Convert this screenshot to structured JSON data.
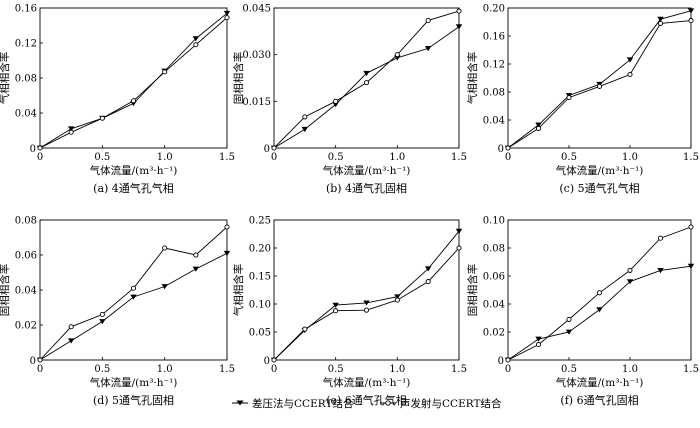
{
  "legend": {
    "series1": "差压法与CCERT结合",
    "series2": "声发射与CCERT结合"
  },
  "chart_data": [
    {
      "type": "line",
      "caption": "(a) 4通气孔气相",
      "xlabel": "气体流量/(m³·h⁻¹)",
      "ylabel": "气相相含率",
      "xlim": [
        0,
        1.5
      ],
      "ylim": [
        0,
        0.16
      ],
      "xticks": [
        0,
        0.5,
        1.0,
        1.5
      ],
      "xtick_labels": [
        "0",
        "0.5",
        "1.0",
        "1.5"
      ],
      "yticks": [
        0.04,
        0.08,
        0.12,
        0.16
      ],
      "ytick_labels": [
        "0.04",
        "0.08",
        "0.12",
        "0.16"
      ],
      "x": [
        0,
        0.25,
        0.5,
        0.75,
        1.0,
        1.25,
        1.5
      ],
      "series": [
        {
          "name": "差压法与CCERT结合",
          "marker": "triangle",
          "values": [
            0,
            0.022,
            0.034,
            0.051,
            0.088,
            0.125,
            0.154
          ]
        },
        {
          "name": "声发射与CCERT结合",
          "marker": "circle",
          "values": [
            0,
            0.018,
            0.034,
            0.054,
            0.087,
            0.118,
            0.149
          ]
        }
      ]
    },
    {
      "type": "line",
      "caption": "(b) 4通气孔固相",
      "xlabel": "气体流量/(m³·h⁻¹)",
      "ylabel": "固相相含率",
      "xlim": [
        0,
        1.5
      ],
      "ylim": [
        0,
        0.045
      ],
      "xticks": [
        0,
        0.5,
        1.0,
        1.5
      ],
      "xtick_labels": [
        "0",
        "0.5",
        "1.0",
        "1.5"
      ],
      "yticks": [
        0.015,
        0.03,
        0.045
      ],
      "ytick_labels": [
        "0.015",
        "0.030",
        "0.045"
      ],
      "x": [
        0,
        0.25,
        0.5,
        0.75,
        1.0,
        1.25,
        1.5
      ],
      "series": [
        {
          "name": "差压法与CCERT结合",
          "marker": "triangle",
          "values": [
            0,
            0.006,
            0.014,
            0.024,
            0.029,
            0.032,
            0.039
          ]
        },
        {
          "name": "声发射与CCERT结合",
          "marker": "circle",
          "values": [
            0,
            0.01,
            0.015,
            0.021,
            0.03,
            0.041,
            0.044
          ]
        }
      ]
    },
    {
      "type": "line",
      "caption": "(c) 5通气孔气相",
      "xlabel": "气体流量/(m³·h⁻¹)",
      "ylabel": "气相相含率",
      "xlim": [
        0,
        1.5
      ],
      "ylim": [
        0,
        0.2
      ],
      "xticks": [
        0,
        0.5,
        1.0,
        1.5
      ],
      "xtick_labels": [
        "0",
        "0.5",
        "1.0",
        "1.5"
      ],
      "yticks": [
        0.04,
        0.08,
        0.12,
        0.16,
        0.2
      ],
      "ytick_labels": [
        "0.04",
        "0.08",
        "0.12",
        "0.16",
        "0.20"
      ],
      "x": [
        0,
        0.25,
        0.5,
        0.75,
        1.0,
        1.25,
        1.5
      ],
      "series": [
        {
          "name": "差压法与CCERT结合",
          "marker": "triangle",
          "values": [
            0,
            0.033,
            0.075,
            0.091,
            0.126,
            0.184,
            0.196
          ]
        },
        {
          "name": "声发射与CCERT结合",
          "marker": "circle",
          "values": [
            0,
            0.028,
            0.072,
            0.088,
            0.105,
            0.178,
            0.182
          ]
        }
      ]
    },
    {
      "type": "line",
      "caption": "(d) 5通气孔固相",
      "xlabel": "气体流量/(m³·h⁻¹)",
      "ylabel": "固相相含率",
      "xlim": [
        0,
        1.5
      ],
      "ylim": [
        0,
        0.08
      ],
      "xticks": [
        0,
        0.5,
        1.0,
        1.5
      ],
      "xtick_labels": [
        "0",
        "0.5",
        "1.0",
        "1.5"
      ],
      "yticks": [
        0.02,
        0.04,
        0.06,
        0.08
      ],
      "ytick_labels": [
        "0.02",
        "0.04",
        "0.06",
        "0.08"
      ],
      "x": [
        0,
        0.25,
        0.5,
        0.75,
        1.0,
        1.25,
        1.5
      ],
      "series": [
        {
          "name": "差压法与CCERT结合",
          "marker": "triangle",
          "values": [
            0,
            0.011,
            0.022,
            0.036,
            0.042,
            0.052,
            0.061
          ]
        },
        {
          "name": "声发射与CCERT结合",
          "marker": "circle",
          "values": [
            0,
            0.019,
            0.026,
            0.041,
            0.064,
            0.06,
            0.076
          ]
        }
      ]
    },
    {
      "type": "line",
      "caption": "(e) 6通气孔气相",
      "xlabel": "气体流量/(m³·h⁻¹)",
      "ylabel": "气相相含率",
      "xlim": [
        0,
        1.5
      ],
      "ylim": [
        0,
        0.25
      ],
      "xticks": [
        0,
        0.5,
        1.0,
        1.5
      ],
      "xtick_labels": [
        "0",
        "0.5",
        "1.0",
        "1.5"
      ],
      "yticks": [
        0.05,
        0.1,
        0.15,
        0.2,
        0.25
      ],
      "ytick_labels": [
        "0.05",
        "0.10",
        "0.15",
        "0.20",
        "0.25"
      ],
      "x": [
        0,
        0.25,
        0.5,
        0.75,
        1.0,
        1.25,
        1.5
      ],
      "series": [
        {
          "name": "差压法与CCERT结合",
          "marker": "triangle",
          "values": [
            0,
            0.053,
            0.098,
            0.102,
            0.113,
            0.163,
            0.23
          ]
        },
        {
          "name": "声发射与CCERT结合",
          "marker": "circle",
          "values": [
            0,
            0.055,
            0.088,
            0.089,
            0.107,
            0.14,
            0.2
          ]
        }
      ]
    },
    {
      "type": "line",
      "caption": "(f) 6通气孔固相",
      "xlabel": "气体流量/(m³·h⁻¹)",
      "ylabel": "固相相含率",
      "xlim": [
        0,
        1.5
      ],
      "ylim": [
        0,
        0.1
      ],
      "xticks": [
        0,
        0.5,
        1.0,
        1.5
      ],
      "xtick_labels": [
        "0",
        "0.5",
        "1.0",
        "1.5"
      ],
      "yticks": [
        0.02,
        0.04,
        0.06,
        0.08,
        0.1
      ],
      "ytick_labels": [
        "0.02",
        "0.04",
        "0.06",
        "0.08",
        "0.10"
      ],
      "x": [
        0,
        0.25,
        0.5,
        0.75,
        1.0,
        1.25,
        1.5
      ],
      "series": [
        {
          "name": "差压法与CCERT结合",
          "marker": "triangle",
          "values": [
            0,
            0.015,
            0.02,
            0.036,
            0.056,
            0.064,
            0.067
          ]
        },
        {
          "name": "声发射与CCERT结合",
          "marker": "circle",
          "values": [
            0,
            0.011,
            0.029,
            0.048,
            0.064,
            0.087,
            0.095
          ]
        }
      ]
    }
  ]
}
